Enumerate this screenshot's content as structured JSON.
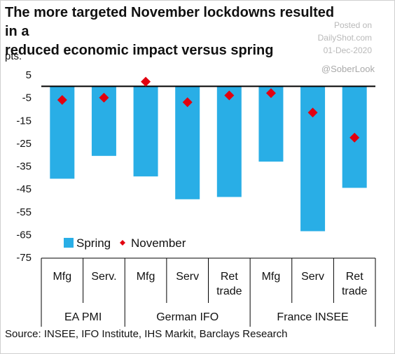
{
  "title_lines": [
    "The more targeted November lockdowns resulted in a",
    "reduced economic impact versus spring"
  ],
  "watermark": {
    "posted_on": "Posted on",
    "site": "DailyShot.com",
    "date": "01-Dec-2020",
    "handle": "@SoberLook"
  },
  "source": "Source: INSEE, IFO Institute, IHS Markit, Barclays Research",
  "colors": {
    "spring": "#29aee6",
    "november": "#e2000f",
    "axis": "#000000"
  },
  "chart_data": {
    "type": "bar",
    "ylabel": "pts.",
    "ylim": [
      -75,
      5
    ],
    "yticks": [
      5,
      -5,
      -15,
      -25,
      -35,
      -45,
      -55,
      -65,
      -75
    ],
    "categories": [
      "Mfg",
      "Serv.",
      "Mfg",
      "Serv",
      "Ret trade",
      "Mfg",
      "Serv",
      "Ret trade"
    ],
    "groups": [
      {
        "label": "EA PMI",
        "count": 2
      },
      {
        "label": "German IFO",
        "count": 3
      },
      {
        "label": "France INSEE",
        "count": 3
      }
    ],
    "series": [
      {
        "name": "Spring",
        "kind": "bar",
        "values": [
          -40.5,
          -30.5,
          -39.5,
          -49.5,
          -48.5,
          -33,
          -63.5,
          -44.5
        ]
      },
      {
        "name": "November",
        "kind": "marker",
        "values": [
          -6,
          -5,
          2,
          -7,
          -4,
          -3,
          -11.5,
          -22.5
        ]
      }
    ],
    "legend": "bottom-left"
  }
}
